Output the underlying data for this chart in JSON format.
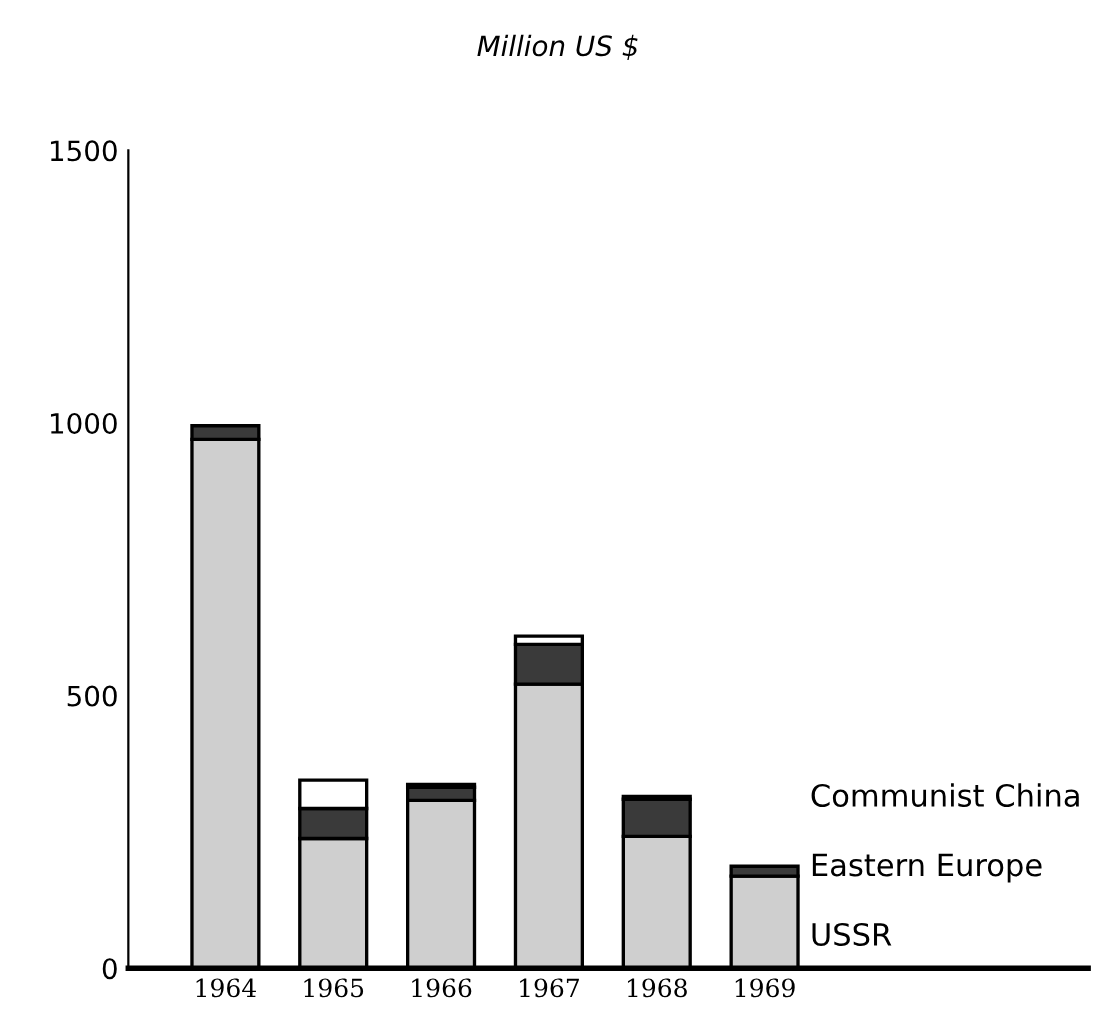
{
  "chart_data": {
    "type": "bar",
    "stacked": true,
    "title": "Million US $",
    "categories": [
      "1964",
      "1965",
      "1966",
      "1967",
      "1968",
      "1969"
    ],
    "series": [
      {
        "name": "USSR",
        "color": "#cfcfcf",
        "values": [
          970,
          238,
          308,
          521,
          242,
          169
        ]
      },
      {
        "name": "Eastern Europe",
        "color": "#3a3a3a",
        "values": [
          25,
          55,
          24,
          73,
          68,
          18
        ]
      },
      {
        "name": "Communist China",
        "color": "#ffffff",
        "values": [
          null,
          52,
          5,
          15,
          5,
          null
        ]
      }
    ],
    "ylim": [
      0,
      1500
    ],
    "yticks": [
      0,
      500,
      1000,
      1500
    ],
    "grid": false,
    "legend": "right"
  }
}
